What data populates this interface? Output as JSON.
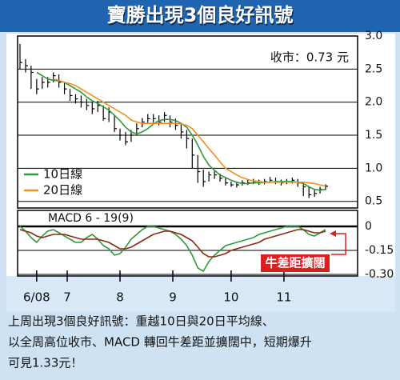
{
  "title": "寶勝出現3個良好訊號",
  "chart_data": [
    {
      "type": "ohlc",
      "annotation": "收市：0.73 元",
      "color": "#000000",
      "high": [
        2.88,
        2.65,
        2.55,
        2.35,
        2.38,
        2.38,
        2.45,
        2.42,
        2.3,
        2.2,
        2.12,
        2.1,
        2.05,
        2.0,
        2.02,
        1.95,
        1.92,
        1.8,
        1.6,
        1.55,
        1.58,
        1.68,
        1.76,
        1.82,
        1.82,
        1.8,
        1.85,
        1.8,
        1.75,
        1.68,
        1.58,
        1.45,
        1.2,
        0.98,
        0.95,
        0.96,
        0.92,
        0.86,
        0.8,
        0.8,
        0.82,
        0.83,
        0.84,
        0.83,
        0.84,
        0.87,
        0.86,
        0.83,
        0.84,
        0.86,
        0.84,
        0.78,
        0.72,
        0.68,
        0.72,
        0.76
      ],
      "low": [
        2.5,
        2.45,
        2.2,
        2.12,
        2.2,
        2.22,
        2.3,
        2.22,
        2.12,
        2.02,
        1.98,
        1.92,
        1.88,
        1.82,
        1.85,
        1.72,
        1.7,
        1.55,
        1.42,
        1.35,
        1.4,
        1.5,
        1.62,
        1.68,
        1.68,
        1.65,
        1.7,
        1.62,
        1.58,
        1.45,
        1.3,
        1.0,
        0.78,
        0.72,
        0.8,
        0.84,
        0.8,
        0.74,
        0.72,
        0.71,
        0.74,
        0.75,
        0.76,
        0.75,
        0.76,
        0.78,
        0.76,
        0.74,
        0.76,
        0.77,
        0.72,
        0.58,
        0.55,
        0.57,
        0.62,
        0.67
      ],
      "close": [
        2.6,
        2.55,
        2.45,
        2.2,
        2.3,
        2.3,
        2.4,
        2.3,
        2.2,
        2.1,
        2.05,
        2.0,
        1.95,
        1.9,
        1.95,
        1.75,
        1.85,
        1.6,
        1.5,
        1.4,
        1.5,
        1.6,
        1.7,
        1.75,
        1.75,
        1.7,
        1.8,
        1.7,
        1.65,
        1.55,
        1.45,
        1.2,
        0.95,
        0.8,
        0.9,
        0.9,
        0.85,
        0.78,
        0.75,
        0.75,
        0.78,
        0.78,
        0.8,
        0.78,
        0.8,
        0.82,
        0.8,
        0.78,
        0.8,
        0.82,
        0.78,
        0.72,
        0.6,
        0.62,
        0.68,
        0.73
      ],
      "series": [
        {
          "name": "10日線",
          "color": "#2e9a3a",
          "values": [
            null,
            null,
            null,
            2.45,
            2.4,
            2.35,
            2.33,
            2.32,
            2.3,
            2.25,
            2.2,
            2.15,
            2.08,
            2.02,
            1.98,
            1.93,
            1.88,
            1.8,
            1.72,
            1.62,
            1.55,
            1.52,
            1.55,
            1.6,
            1.67,
            1.72,
            1.74,
            1.74,
            1.72,
            1.68,
            1.62,
            1.5,
            1.35,
            1.18,
            1.05,
            0.97,
            0.9,
            0.86,
            0.82,
            0.79,
            0.77,
            0.77,
            0.78,
            0.78,
            0.79,
            0.79,
            0.8,
            0.8,
            0.8,
            0.8,
            0.79,
            0.77,
            0.72,
            0.68,
            0.67,
            0.68
          ]
        },
        {
          "name": "20日線",
          "color": "#f0901e",
          "values": [
            null,
            null,
            null,
            null,
            null,
            null,
            2.35,
            2.33,
            2.3,
            2.28,
            2.25,
            2.2,
            2.15,
            2.1,
            2.05,
            2.0,
            1.95,
            1.9,
            1.85,
            1.8,
            1.73,
            1.7,
            1.68,
            1.68,
            1.68,
            1.68,
            1.68,
            1.68,
            1.68,
            1.67,
            1.65,
            1.6,
            1.5,
            1.4,
            1.3,
            1.2,
            1.1,
            1.0,
            0.95,
            0.9,
            0.86,
            0.83,
            0.81,
            0.8,
            0.79,
            0.79,
            0.79,
            0.79,
            0.79,
            0.79,
            0.79,
            0.79,
            0.78,
            0.77,
            0.75,
            0.73
          ]
        }
      ],
      "xlim": [
        0,
        55
      ],
      "xticks": [
        {
          "value": 3,
          "label": "6/08"
        },
        {
          "value": 8.5,
          "label": "7"
        },
        {
          "value": 18,
          "label": "8"
        },
        {
          "value": 27.5,
          "label": "9"
        },
        {
          "value": 38,
          "label": "10"
        },
        {
          "value": 47.5,
          "label": "11"
        }
      ],
      "ylim": [
        0.4,
        3.0
      ],
      "yticks": [
        {
          "value": 3,
          "label": "3.0"
        },
        2.5,
        {
          "value": 2,
          "label": "2.0"
        },
        1.5,
        {
          "value": 1,
          "label": "1.0"
        },
        0.5
      ],
      "grid": true
    },
    {
      "type": "line",
      "label": "MACD 6 - 19(9)",
      "annotation": "牛差距擴闊",
      "series": [
        {
          "color": "#2e9a3a",
          "values": [
            0,
            -0.03,
            -0.07,
            -0.1,
            -0.06,
            -0.03,
            -0.02,
            -0.04,
            -0.06,
            -0.08,
            -0.1,
            -0.1,
            -0.07,
            -0.05,
            -0.08,
            -0.12,
            -0.14,
            -0.18,
            -0.17,
            -0.13,
            -0.08,
            -0.05,
            -0.02,
            0.0,
            0.0,
            -0.01,
            -0.02,
            -0.03,
            -0.05,
            -0.08,
            -0.12,
            -0.18,
            -0.26,
            -0.28,
            -0.22,
            -0.18,
            -0.15,
            -0.12,
            -0.11,
            -0.1,
            -0.09,
            -0.08,
            -0.07,
            -0.05,
            -0.04,
            -0.03,
            -0.02,
            -0.01,
            0.0,
            0.0,
            0.0,
            -0.02,
            -0.05,
            -0.06,
            -0.04,
            -0.02
          ]
        },
        {
          "color": "#8b2a12",
          "values": [
            -0.02,
            -0.03,
            -0.04,
            -0.06,
            -0.07,
            -0.06,
            -0.05,
            -0.05,
            -0.05,
            -0.06,
            -0.07,
            -0.08,
            -0.08,
            -0.08,
            -0.08,
            -0.09,
            -0.1,
            -0.12,
            -0.14,
            -0.14,
            -0.13,
            -0.11,
            -0.09,
            -0.07,
            -0.05,
            -0.04,
            -0.03,
            -0.03,
            -0.04,
            -0.05,
            -0.07,
            -0.09,
            -0.13,
            -0.17,
            -0.19,
            -0.19,
            -0.18,
            -0.17,
            -0.15,
            -0.14,
            -0.13,
            -0.12,
            -0.11,
            -0.1,
            -0.08,
            -0.07,
            -0.06,
            -0.05,
            -0.04,
            -0.03,
            -0.02,
            -0.02,
            -0.03,
            -0.04,
            -0.04,
            -0.03
          ]
        }
      ],
      "xlim": [
        0,
        55
      ],
      "ylim": [
        -0.31,
        0.1
      ],
      "yticks": [
        0,
        -0.15,
        {
          "value": -0.3,
          "label": "-0.30"
        }
      ],
      "grid": true
    }
  ],
  "caption": [
    "上周出現3個良好訊號：重越10日與20日平均線、",
    "以全周高位收市、MACD 轉回牛差距並擴闊中，短期爆升",
    "可見1.33元！"
  ]
}
